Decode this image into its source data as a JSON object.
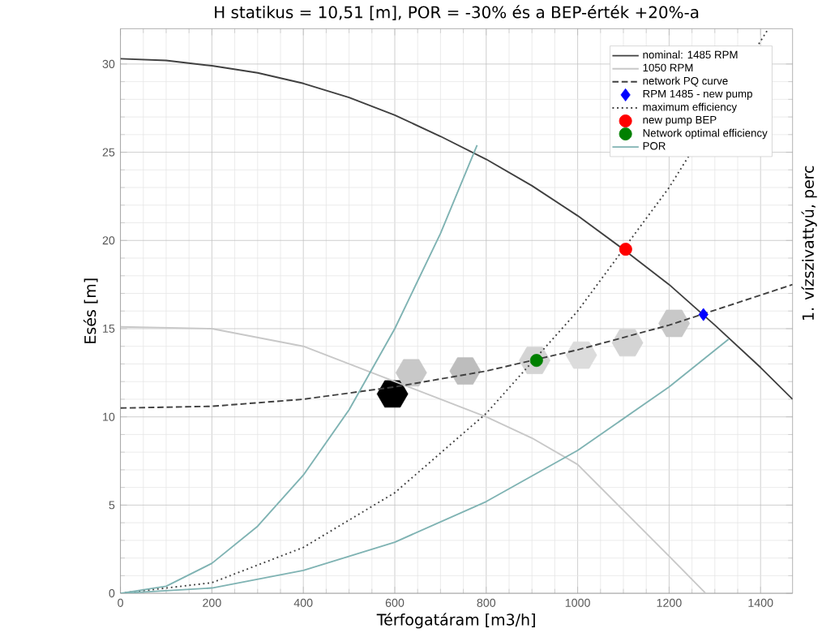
{
  "chart_data": {
    "type": "line",
    "title": "H statikus = 10,51 [m], POR = -30% és a BEP-érték +20%-a",
    "xlabel": "Térfogatáram [m3/h]",
    "ylabel": "Esés [m]",
    "y2label": "1. vízszivattyú, perc",
    "xlim": [
      0,
      1470
    ],
    "ylim": [
      0,
      32
    ],
    "xticks": [
      0,
      200,
      400,
      600,
      800,
      1000,
      1200,
      1400
    ],
    "yticks": [
      0,
      5,
      10,
      15,
      20,
      25,
      30
    ],
    "grid": true,
    "legend": "top right",
    "series": [
      {
        "type": "scatter",
        "x": [
          595,
          636,
          754,
          906,
          1008,
          1109,
          1211
        ],
        "values": [
          11.3,
          12.5,
          12.6,
          13.2,
          13.5,
          14.2,
          15.3
        ],
        "colors": [
          "#000000",
          "#c8c8c8",
          "#bdbdbd",
          "#d4d4d4",
          "#dcdcdc",
          "#d4d4d4",
          "#c8c8c8"
        ]
      },
      {
        "name": "nominal: 1485 RPM",
        "color": "#404040",
        "line_style": "solid",
        "x": [
          0,
          100,
          200,
          300,
          400,
          500,
          600,
          700,
          800,
          900,
          1000,
          1100,
          1200,
          1300,
          1400,
          1470
        ],
        "values": [
          30.3,
          30.2,
          29.9,
          29.5,
          28.9,
          28.1,
          27.1,
          25.9,
          24.6,
          23.1,
          21.4,
          19.5,
          17.5,
          15.2,
          12.8,
          11.0
        ]
      },
      {
        "name": "1050 RPM",
        "color": "#c8c8c8",
        "line_style": "solid",
        "x": [
          0,
          200,
          400,
          600,
          700,
          800,
          900,
          1000,
          1100,
          1200,
          1280
        ],
        "values": [
          15.1,
          15.0,
          14.0,
          12.0,
          11.0,
          10.0,
          8.8,
          7.3,
          4.7,
          2.1,
          0
        ]
      },
      {
        "name": "network PQ curve",
        "color": "#404040",
        "line_style": "dashed",
        "x": [
          0,
          200,
          400,
          600,
          800,
          1000,
          1200,
          1400,
          1470
        ],
        "values": [
          10.5,
          10.6,
          11.0,
          11.7,
          12.6,
          13.8,
          15.2,
          16.9,
          17.5
        ]
      },
      {
        "name": "RPM 1485 - new pump",
        "type": "scatter",
        "marker": "diamond",
        "color": "#0000ff",
        "x": [
          1275
        ],
        "values": [
          15.8
        ]
      },
      {
        "name": "maximum efficiency",
        "color": "#404040",
        "line_style": "dotted",
        "x": [
          0,
          200,
          400,
          600,
          800,
          1000,
          1200,
          1417
        ],
        "values": [
          0,
          0.6,
          2.6,
          5.7,
          10.2,
          16.0,
          23.0,
          32.0
        ]
      },
      {
        "name": "new pump BEP",
        "type": "scatter",
        "marker": "circle",
        "color": "#ff0000",
        "x": [
          1105
        ],
        "values": [
          19.5
        ]
      },
      {
        "name": "Network optimal efficiency",
        "type": "scatter",
        "marker": "circle",
        "color": "#008000",
        "x": [
          910
        ],
        "values": [
          13.2
        ]
      },
      {
        "name": "POR",
        "color": "#7fb3b3",
        "line_style": "solid",
        "x": [
          0,
          100,
          200,
          300,
          400,
          500,
          600,
          700,
          780
        ],
        "values": [
          0,
          0.4,
          1.7,
          3.8,
          6.7,
          10.4,
          15.0,
          20.4,
          25.4
        ]
      },
      {
        "color": "#7fb3b3",
        "line_style": "solid",
        "x": [
          0,
          200,
          400,
          600,
          800,
          1000,
          1200,
          1330
        ],
        "values": [
          0,
          0.3,
          1.3,
          2.9,
          5.2,
          8.1,
          11.7,
          14.4
        ]
      }
    ]
  }
}
